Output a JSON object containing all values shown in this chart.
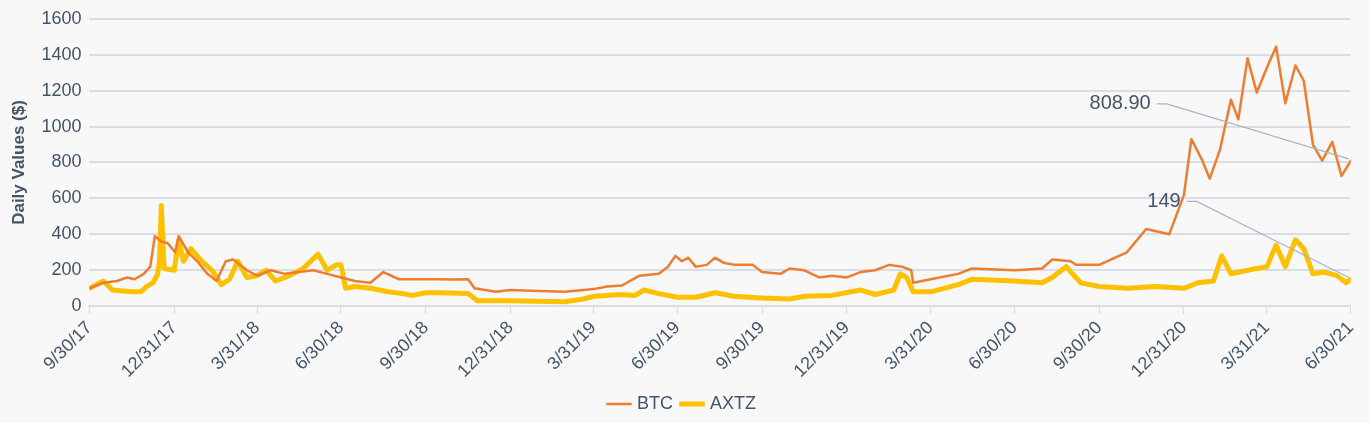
{
  "chart_data": {
    "type": "line",
    "ylabel": "Daily Values ($)",
    "xlim": [
      "2017-09-30",
      "2021-06-30"
    ],
    "xticks": [
      {
        "value": "2017-09-30",
        "label": "9/30/17"
      },
      {
        "value": "2017-12-31",
        "label": "12/31/17"
      },
      {
        "value": "2018-03-31",
        "label": "3/31/18"
      },
      {
        "value": "2018-06-30",
        "label": "6/30/18"
      },
      {
        "value": "2018-09-30",
        "label": "9/30/18"
      },
      {
        "value": "2018-12-31",
        "label": "12/31/18"
      },
      {
        "value": "2019-03-31",
        "label": "3/31/19"
      },
      {
        "value": "2019-06-30",
        "label": "6/30/19"
      },
      {
        "value": "2019-09-30",
        "label": "9/30/19"
      },
      {
        "value": "2019-12-31",
        "label": "12/31/19"
      },
      {
        "value": "2020-03-31",
        "label": "3/31/20"
      },
      {
        "value": "2020-06-30",
        "label": "6/30/20"
      },
      {
        "value": "2020-09-30",
        "label": "9/30/20"
      },
      {
        "value": "2020-12-31",
        "label": "12/31/20"
      },
      {
        "value": "2021-03-31",
        "label": "3/31/21"
      },
      {
        "value": "2021-06-30",
        "label": "6/30/21"
      }
    ],
    "ylim": [
      0,
      1600
    ],
    "yticks": [
      0,
      200,
      400,
      600,
      800,
      1000,
      1200,
      1400,
      1600
    ],
    "grid": "y",
    "legend": "bottom",
    "marker": "none",
    "line_style": "solid",
    "annotations": [
      {
        "text": "808.90",
        "x": "2021-06-30",
        "y": 808.9
      },
      {
        "text": "149",
        "x": "2021-06-30",
        "y": 149
      }
    ],
    "series": [
      {
        "name": "BTC",
        "color": "#ed7d31",
        "x": [
          "2017-09-30",
          "2017-10-15",
          "2017-10-30",
          "2017-11-10",
          "2017-11-18",
          "2017-11-28",
          "2017-12-05",
          "2017-12-10",
          "2017-12-17",
          "2017-12-24",
          "2018-01-01",
          "2018-01-05",
          "2018-01-15",
          "2018-01-25",
          "2018-02-05",
          "2018-02-15",
          "2018-02-25",
          "2018-03-05",
          "2018-03-20",
          "2018-03-31",
          "2018-04-15",
          "2018-04-30",
          "2018-05-15",
          "2018-05-31",
          "2018-06-15",
          "2018-06-30",
          "2018-07-15",
          "2018-08-01",
          "2018-08-15",
          "2018-09-01",
          "2018-09-15",
          "2018-09-30",
          "2018-10-15",
          "2018-11-01",
          "2018-11-15",
          "2018-11-22",
          "2018-12-15",
          "2018-12-31",
          "2019-01-31",
          "2019-02-28",
          "2019-03-31",
          "2019-04-15",
          "2019-05-01",
          "2019-05-20",
          "2019-06-10",
          "2019-06-20",
          "2019-06-28",
          "2019-07-05",
          "2019-07-12",
          "2019-07-20",
          "2019-08-01",
          "2019-08-10",
          "2019-08-20",
          "2019-09-01",
          "2019-09-20",
          "2019-09-30",
          "2019-10-20",
          "2019-10-30",
          "2019-11-15",
          "2019-12-01",
          "2019-12-15",
          "2019-12-31",
          "2020-01-15",
          "2020-01-31",
          "2020-02-15",
          "2020-02-29",
          "2020-03-10",
          "2020-03-12",
          "2020-03-31",
          "2020-04-30",
          "2020-05-15",
          "2020-06-30",
          "2020-07-30",
          "2020-08-10",
          "2020-08-30",
          "2020-09-05",
          "2020-09-30",
          "2020-10-30",
          "2020-11-20",
          "2020-12-15",
          "2020-12-31",
          "2021-01-08",
          "2021-01-20",
          "2021-01-28",
          "2021-02-08",
          "2021-02-20",
          "2021-02-28",
          "2021-03-10",
          "2021-03-20",
          "2021-04-01",
          "2021-04-10",
          "2021-04-20",
          "2021-05-01",
          "2021-05-10",
          "2021-05-20",
          "2021-05-30",
          "2021-06-10",
          "2021-06-20",
          "2021-06-30"
        ],
        "values": [
          100,
          130,
          140,
          160,
          150,
          180,
          220,
          390,
          360,
          350,
          300,
          390,
          300,
          250,
          180,
          140,
          250,
          260,
          200,
          170,
          200,
          180,
          190,
          200,
          180,
          160,
          140,
          130,
          190,
          150,
          150,
          150,
          150,
          148,
          150,
          100,
          80,
          90,
          85,
          80,
          95,
          110,
          115,
          170,
          180,
          220,
          280,
          250,
          270,
          220,
          230,
          270,
          240,
          230,
          230,
          190,
          180,
          210,
          200,
          160,
          170,
          160,
          190,
          200,
          230,
          220,
          200,
          130,
          150,
          180,
          210,
          200,
          210,
          260,
          250,
          230,
          230,
          300,
          430,
          400,
          620,
          930,
          810,
          710,
          870,
          1150,
          1040,
          1380,
          1190,
          1340,
          1445,
          1130,
          1340,
          1255,
          900,
          810,
          915,
          725,
          808.9
        ]
      },
      {
        "name": "AXTZ",
        "color": "#ffc000",
        "x": [
          "2017-09-30",
          "2017-10-15",
          "2017-10-25",
          "2017-11-15",
          "2017-11-25",
          "2017-12-01",
          "2017-12-08",
          "2017-12-13",
          "2017-12-15",
          "2017-12-17",
          "2017-12-20",
          "2017-12-31",
          "2018-01-05",
          "2018-01-10",
          "2018-01-18",
          "2018-01-30",
          "2018-02-10",
          "2018-02-20",
          "2018-03-01",
          "2018-03-10",
          "2018-03-20",
          "2018-03-31",
          "2018-04-10",
          "2018-04-20",
          "2018-05-05",
          "2018-05-20",
          "2018-06-05",
          "2018-06-15",
          "2018-06-25",
          "2018-06-30",
          "2018-07-05",
          "2018-07-15",
          "2018-08-01",
          "2018-08-20",
          "2018-09-05",
          "2018-09-15",
          "2018-09-30",
          "2018-10-15",
          "2018-11-15",
          "2018-11-25",
          "2018-12-31",
          "2019-02-28",
          "2019-03-20",
          "2019-04-01",
          "2019-04-30",
          "2019-05-15",
          "2019-05-25",
          "2019-06-10",
          "2019-06-30",
          "2019-07-20",
          "2019-08-10",
          "2019-08-30",
          "2019-09-30",
          "2019-10-30",
          "2019-11-15",
          "2019-12-15",
          "2020-01-15",
          "2020-01-31",
          "2020-02-20",
          "2020-02-27",
          "2020-03-05",
          "2020-03-12",
          "2020-03-31",
          "2020-04-30",
          "2020-05-15",
          "2020-06-30",
          "2020-07-30",
          "2020-08-10",
          "2020-08-25",
          "2020-09-10",
          "2020-09-30",
          "2020-10-31",
          "2020-11-30",
          "2020-12-31",
          "2021-01-15",
          "2021-02-01",
          "2021-02-10",
          "2021-02-20",
          "2021-03-10",
          "2021-03-31",
          "2021-04-10",
          "2021-04-20",
          "2021-05-01",
          "2021-05-10",
          "2021-05-20",
          "2021-06-01",
          "2021-06-15",
          "2021-06-25",
          "2021-06-30"
        ],
        "values": [
          100,
          140,
          90,
          80,
          80,
          110,
          130,
          180,
          250,
          560,
          210,
          200,
          370,
          250,
          320,
          250,
          200,
          120,
          150,
          250,
          160,
          170,
          200,
          140,
          170,
          210,
          290,
          200,
          230,
          230,
          100,
          110,
          100,
          80,
          70,
          60,
          75,
          75,
          70,
          30,
          30,
          25,
          40,
          55,
          65,
          60,
          90,
          70,
          50,
          50,
          75,
          55,
          45,
          40,
          55,
          60,
          90,
          65,
          90,
          180,
          160,
          80,
          80,
          120,
          150,
          140,
          130,
          160,
          220,
          130,
          110,
          100,
          110,
          100,
          130,
          140,
          280,
          180,
          200,
          220,
          340,
          220,
          370,
          320,
          180,
          190,
          170,
          130,
          149
        ]
      }
    ]
  }
}
